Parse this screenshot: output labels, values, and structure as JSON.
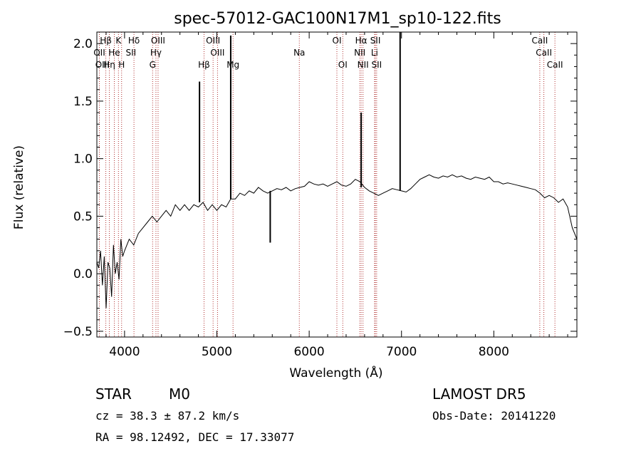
{
  "chart_data": {
    "type": "line",
    "title": "spec-57012-GAC100N17M1_sp10-122.fits",
    "xlabel": "Wavelength (Å)",
    "ylabel": "Flux (relative)",
    "xlim": [
      3700,
      8900
    ],
    "ylim": [
      -0.55,
      2.1
    ],
    "x_ticks": [
      4000,
      5000,
      6000,
      7000,
      8000
    ],
    "y_ticks": [
      -0.5,
      0.0,
      0.5,
      1.0,
      1.5,
      2.0
    ],
    "x_tick_labels": [
      "4000",
      "5000",
      "6000",
      "7000",
      "8000"
    ],
    "y_tick_labels": [
      "−0.5",
      "0.0",
      "0.5",
      "1.0",
      "1.5",
      "2.0"
    ],
    "grid": false,
    "series": [
      {
        "color": "#000000",
        "x": [
          3700,
          3720,
          3740,
          3760,
          3780,
          3800,
          3820,
          3840,
          3860,
          3880,
          3900,
          3920,
          3940,
          3960,
          3980,
          4000,
          4050,
          4100,
          4150,
          4200,
          4250,
          4300,
          4350,
          4400,
          4450,
          4500,
          4550,
          4600,
          4650,
          4700,
          4750,
          4800,
          4850,
          4900,
          4950,
          5000,
          5050,
          5100,
          5150,
          5200,
          5250,
          5300,
          5350,
          5400,
          5450,
          5500,
          5550,
          5600,
          5650,
          5700,
          5750,
          5800,
          5850,
          5900,
          5950,
          6000,
          6050,
          6100,
          6150,
          6200,
          6250,
          6300,
          6350,
          6400,
          6450,
          6500,
          6550,
          6600,
          6650,
          6700,
          6750,
          6800,
          6850,
          6900,
          6950,
          7000,
          7050,
          7100,
          7150,
          7200,
          7250,
          7300,
          7350,
          7400,
          7450,
          7500,
          7550,
          7600,
          7650,
          7700,
          7750,
          7800,
          7850,
          7900,
          7950,
          8000,
          8050,
          8100,
          8150,
          8200,
          8250,
          8300,
          8350,
          8400,
          8450,
          8500,
          8550,
          8600,
          8650,
          8700,
          8750,
          8800,
          8850,
          8900
        ],
        "y": [
          0.1,
          0.05,
          0.2,
          -0.1,
          0.15,
          -0.3,
          0.1,
          0.05,
          -0.2,
          0.25,
          0.0,
          0.1,
          -0.05,
          0.3,
          0.15,
          0.2,
          0.3,
          0.25,
          0.35,
          0.4,
          0.45,
          0.5,
          0.45,
          0.5,
          0.55,
          0.5,
          0.6,
          0.55,
          0.6,
          0.55,
          0.6,
          0.58,
          0.62,
          0.55,
          0.6,
          0.55,
          0.6,
          0.58,
          0.65,
          0.65,
          0.7,
          0.68,
          0.72,
          0.7,
          0.75,
          0.72,
          0.7,
          0.72,
          0.74,
          0.73,
          0.75,
          0.72,
          0.74,
          0.75,
          0.76,
          0.8,
          0.78,
          0.77,
          0.78,
          0.76,
          0.78,
          0.8,
          0.77,
          0.76,
          0.78,
          0.82,
          0.8,
          0.75,
          0.72,
          0.7,
          0.68,
          0.7,
          0.72,
          0.74,
          0.73,
          0.72,
          0.71,
          0.74,
          0.78,
          0.82,
          0.84,
          0.86,
          0.84,
          0.83,
          0.85,
          0.84,
          0.86,
          0.84,
          0.85,
          0.83,
          0.82,
          0.84,
          0.83,
          0.82,
          0.84,
          0.8,
          0.8,
          0.78,
          0.79,
          0.78,
          0.77,
          0.76,
          0.75,
          0.74,
          0.73,
          0.7,
          0.66,
          0.68,
          0.66,
          0.62,
          0.65,
          0.58,
          0.4,
          0.3
        ]
      }
    ],
    "spikes": [
      {
        "x": 4812,
        "y": 1.67
      },
      {
        "x": 5150,
        "y": 2.07
      },
      {
        "x": 5578,
        "y": 0.27
      },
      {
        "x": 6563,
        "y": 1.4
      },
      {
        "x": 6985,
        "y": 2.1
      }
    ],
    "line_labels": [
      {
        "text": "Hβ",
        "x": 3797,
        "row": 0
      },
      {
        "text": "K",
        "x": 3934,
        "row": 0
      },
      {
        "text": "Hδ",
        "x": 4102,
        "row": 0
      },
      {
        "text": "OIII",
        "x": 4363,
        "row": 0
      },
      {
        "text": "OIII",
        "x": 4959,
        "row": 0
      },
      {
        "text": "OI",
        "x": 6300,
        "row": 0
      },
      {
        "text": "Hα",
        "x": 6563,
        "row": 0
      },
      {
        "text": "SII",
        "x": 6717,
        "row": 0
      },
      {
        "text": "CaII",
        "x": 8498,
        "row": 0
      },
      {
        "text": "OII",
        "x": 3727,
        "row": 1
      },
      {
        "text": "He",
        "x": 3889,
        "row": 1
      },
      {
        "text": "SII",
        "x": 4069,
        "row": 1
      },
      {
        "text": "Hγ",
        "x": 4340,
        "row": 1
      },
      {
        "text": "OIII",
        "x": 5007,
        "row": 1
      },
      {
        "text": "Na",
        "x": 5893,
        "row": 1
      },
      {
        "text": "NII",
        "x": 6548,
        "row": 1
      },
      {
        "text": "Li",
        "x": 6708,
        "row": 1
      },
      {
        "text": "CaII",
        "x": 8542,
        "row": 1
      },
      {
        "text": "OIII",
        "x": 3760,
        "row": 2
      },
      {
        "text": "Hη",
        "x": 3835,
        "row": 2
      },
      {
        "text": "H",
        "x": 3968,
        "row": 2
      },
      {
        "text": "G",
        "x": 4304,
        "row": 2
      },
      {
        "text": "Hβ",
        "x": 4861,
        "row": 2
      },
      {
        "text": "Mg",
        "x": 5175,
        "row": 2
      },
      {
        "text": "OI",
        "x": 6364,
        "row": 2
      },
      {
        "text": "NII",
        "x": 6583,
        "row": 2
      },
      {
        "text": "SII",
        "x": 6731,
        "row": 2
      },
      {
        "text": "CaII",
        "x": 8662,
        "row": 2
      }
    ],
    "reference_lines": [
      3727,
      3797,
      3835,
      3889,
      3934,
      3968,
      4102,
      4304,
      4340,
      4363,
      4861,
      4959,
      5007,
      5175,
      5893,
      6300,
      6364,
      6548,
      6563,
      6583,
      6708,
      6717,
      6731,
      8498,
      8542,
      8662
    ]
  },
  "info": {
    "class": "STAR",
    "subclass": "M0",
    "survey": "LAMOST DR5",
    "cz": "cz = 38.3 ± 87.2 km/s",
    "obs_date": "Obs-Date: 20141220",
    "coords": "RA =  98.12492, DEC =  17.33077"
  }
}
